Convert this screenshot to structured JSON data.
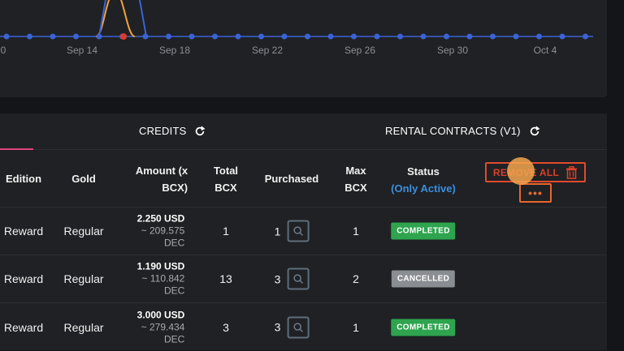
{
  "chart": {
    "x_tick_labels": [
      "0",
      "Sep 14",
      "Sep 18",
      "Sep 22",
      "Sep 26",
      "Sep 30",
      "Oct 4"
    ],
    "colors": {
      "series_blue": "#3a63d6",
      "series_orange": "#f2a23b",
      "highlight_point": "#e23a2a",
      "grid": "#34373b"
    }
  },
  "tabs": [
    {
      "label": "CREDITS",
      "icon": "refresh-icon"
    },
    {
      "label": "RENTAL CONTRACTS (V1)",
      "icon": "refresh-icon"
    }
  ],
  "table": {
    "headers": {
      "edition": "Edition",
      "gold": "Gold",
      "amount_line1": "Amount (x",
      "amount_line2": "BCX)",
      "total_line1": "Total",
      "total_line2": "BCX",
      "purchased": "Purchased",
      "max_line1": "Max",
      "max_line2": "BCX",
      "status": "Status",
      "status_sub": "(Only Active)"
    },
    "remove_all_label": "REMOVE ALL",
    "more_label": "•••",
    "rows": [
      {
        "edition": "Reward",
        "gold": "Regular",
        "amount_usd": "2.250 USD",
        "amount_dec": "~ 209.575",
        "amount_dec_unit": "DEC",
        "total_bcx": "1",
        "purchased": "1",
        "max_bcx": "1",
        "status": "COMPLETED"
      },
      {
        "edition": "Reward",
        "gold": "Regular",
        "amount_usd": "1.190 USD",
        "amount_dec": "~ 110.842",
        "amount_dec_unit": "DEC",
        "total_bcx": "13",
        "purchased": "3",
        "max_bcx": "2",
        "status": "CANCELLED"
      },
      {
        "edition": "Reward",
        "gold": "Regular",
        "amount_usd": "3.000 USD",
        "amount_dec": "~ 279.434",
        "amount_dec_unit": "DEC",
        "total_bcx": "3",
        "purchased": "3",
        "max_bcx": "1",
        "status": "COMPLETED"
      }
    ]
  },
  "colors": {
    "accent_pink": "#e0457b",
    "danger": "#e04a2e",
    "completed": "#2ea44f",
    "cancelled": "#8a8d91",
    "link_blue": "#3b8fe0"
  }
}
